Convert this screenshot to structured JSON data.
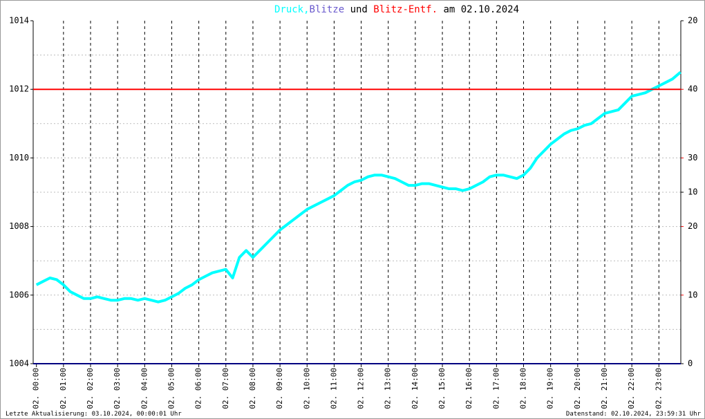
{
  "chart_data": {
    "type": "line",
    "title_parts": [
      {
        "text": "Druck,",
        "color": "#00ffff"
      },
      {
        "text": "Blitze",
        "color": "#6a5acd"
      },
      {
        "text": "und",
        "color": "#000000"
      },
      {
        "text": "Blitz-Entf.",
        "color": "#ff0000"
      },
      {
        "text": "am 02.10.2024",
        "color": "#000000"
      }
    ],
    "footer_left": "Letzte Aktualisierung: 03.10.2024, 00:00:01 Uhr",
    "footer_right": "Datenstand: 02.10.2024, 23:59:31 Uhr",
    "xlim": [
      -0.12,
      23.81
    ],
    "xticks": [
      {
        "value": 0,
        "label": "02. 00:00"
      },
      {
        "value": 1,
        "label": "02. 01:00"
      },
      {
        "value": 2,
        "label": "02. 02:00"
      },
      {
        "value": 3,
        "label": "02. 03:00"
      },
      {
        "value": 4,
        "label": "02. 04:00"
      },
      {
        "value": 5,
        "label": "02. 05:00"
      },
      {
        "value": 6,
        "label": "02. 06:00"
      },
      {
        "value": 7,
        "label": "02. 07:00"
      },
      {
        "value": 8,
        "label": "02. 08:00"
      },
      {
        "value": 9,
        "label": "02. 09:00"
      },
      {
        "value": 10,
        "label": "02. 10:00"
      },
      {
        "value": 11,
        "label": "02. 11:00"
      },
      {
        "value": 12,
        "label": "02. 12:00"
      },
      {
        "value": 13,
        "label": "02. 13:00"
      },
      {
        "value": 14,
        "label": "02. 14:00"
      },
      {
        "value": 15,
        "label": "02. 15:00"
      },
      {
        "value": 16,
        "label": "02. 16:00"
      },
      {
        "value": 17,
        "label": "02. 17:00"
      },
      {
        "value": 18,
        "label": "02. 18:00"
      },
      {
        "value": 19,
        "label": "02. 19:00"
      },
      {
        "value": 20,
        "label": "02. 20:00"
      },
      {
        "value": 21,
        "label": "02. 21:00"
      },
      {
        "value": 22,
        "label": "02. 22:00"
      },
      {
        "value": 23,
        "label": "02. 23:00"
      }
    ],
    "ylim": [
      1004,
      1014
    ],
    "yticks": [
      1004,
      1006,
      1008,
      1010,
      1012,
      1014
    ],
    "ygrid": [
      1005,
      1006,
      1007,
      1008,
      1009,
      1010,
      1011,
      1012,
      1013
    ],
    "y2lim": [
      0,
      20
    ],
    "y2ticks": [
      0,
      10,
      20
    ],
    "y2color": "#000000",
    "y3lim": [
      0,
      50
    ],
    "y3ticks": [
      10,
      20,
      30,
      40
    ],
    "y3color": "#ff0000",
    "series": [
      {
        "name": "Druck",
        "color": "#00ffff",
        "x": [
          0,
          0.25,
          0.5,
          0.75,
          1,
          1.25,
          1.5,
          1.75,
          2,
          2.25,
          2.5,
          2.75,
          3,
          3.25,
          3.5,
          3.75,
          4,
          4.25,
          4.5,
          4.75,
          5,
          5.25,
          5.5,
          5.75,
          6,
          6.25,
          6.5,
          6.75,
          7,
          7.25,
          7.5,
          7.75,
          8,
          8.25,
          8.5,
          8.75,
          9,
          9.25,
          9.5,
          9.75,
          10,
          10.25,
          10.5,
          10.75,
          11,
          11.25,
          11.5,
          11.75,
          12,
          12.25,
          12.5,
          12.75,
          13,
          13.25,
          13.5,
          13.75,
          14,
          14.25,
          14.5,
          14.75,
          15,
          15.25,
          15.5,
          15.75,
          16,
          16.25,
          16.5,
          16.75,
          17,
          17.25,
          17.5,
          17.75,
          18,
          18.25,
          18.5,
          18.75,
          19,
          19.25,
          19.5,
          19.75,
          20,
          20.25,
          20.5,
          20.75,
          21,
          21.25,
          21.5,
          21.75,
          22,
          22.25,
          22.5,
          22.75,
          23,
          23.25,
          23.5,
          23.8
        ],
        "values": [
          1006.3,
          1006.4,
          1006.5,
          1006.45,
          1006.3,
          1006.1,
          1006.0,
          1005.9,
          1005.9,
          1005.95,
          1005.9,
          1005.85,
          1005.85,
          1005.9,
          1005.9,
          1005.85,
          1005.9,
          1005.85,
          1005.8,
          1005.85,
          1005.95,
          1006.05,
          1006.2,
          1006.3,
          1006.45,
          1006.55,
          1006.65,
          1006.7,
          1006.75,
          1006.5,
          1007.1,
          1007.3,
          1007.1,
          1007.3,
          1007.5,
          1007.7,
          1007.9,
          1008.05,
          1008.2,
          1008.35,
          1008.5,
          1008.6,
          1008.7,
          1008.8,
          1008.9,
          1009.05,
          1009.2,
          1009.3,
          1009.35,
          1009.45,
          1009.5,
          1009.5,
          1009.45,
          1009.4,
          1009.3,
          1009.2,
          1009.2,
          1009.25,
          1009.25,
          1009.2,
          1009.15,
          1009.1,
          1009.1,
          1009.05,
          1009.1,
          1009.2,
          1009.3,
          1009.45,
          1009.5,
          1009.5,
          1009.45,
          1009.4,
          1009.5,
          1009.7,
          1010.0,
          1010.2,
          1010.4,
          1010.55,
          1010.7,
          1010.8,
          1010.85,
          1010.95,
          1011.0,
          1011.15,
          1011.3,
          1011.35,
          1011.4,
          1011.6,
          1011.8,
          1011.85,
          1011.9,
          1012.0,
          1012.1,
          1012.2,
          1012.3,
          1012.5
        ]
      },
      {
        "name": "Blitze",
        "color": "#000080",
        "axis": "y2",
        "level": 0
      },
      {
        "name": "Blitz-Entf.",
        "color": "#ff0000",
        "axis": "y3",
        "level": 40
      }
    ]
  }
}
